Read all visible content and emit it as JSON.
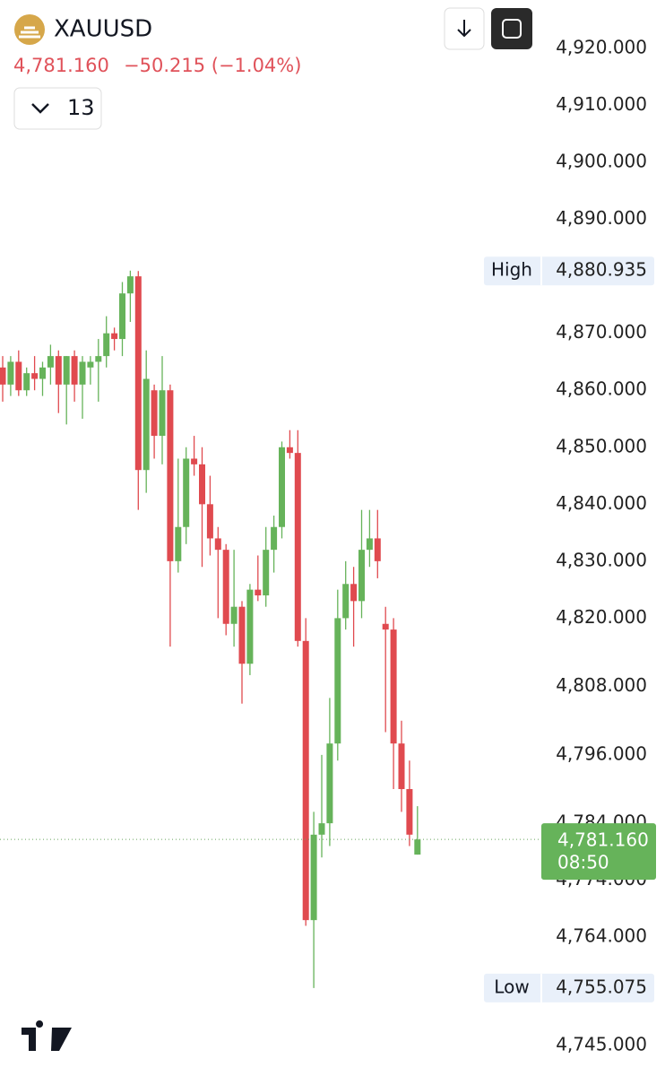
{
  "header": {
    "symbol": "XAUUSD",
    "change": "−50.215 (−1.04%)",
    "interval": "13"
  },
  "chart_data": {
    "type": "candlestick",
    "up_color": "#66b35a",
    "down_color": "#e04a4f",
    "ylim": [
      4739.64,
      4928.5
    ],
    "yticks": [
      {
        "value": 4920,
        "label": "4,920.000"
      },
      {
        "value": 4910,
        "label": "4,910.000"
      },
      {
        "value": 4900,
        "label": "4,900.000"
      },
      {
        "value": 4890,
        "label": "4,890.000"
      },
      {
        "value": 4870,
        "label": "4,870.000"
      },
      {
        "value": 4860,
        "label": "4,860.000"
      },
      {
        "value": 4850,
        "label": "4,850.000"
      },
      {
        "value": 4840,
        "label": "4,840.000"
      },
      {
        "value": 4830,
        "label": "4,830.000"
      },
      {
        "value": 4820,
        "label": "4,820.000"
      },
      {
        "value": 4808,
        "label": "4,808.000"
      },
      {
        "value": 4796,
        "label": "4,796.000"
      },
      {
        "value": 4784,
        "label": "4,784.000"
      },
      {
        "value": 4774,
        "label": "4,774.000"
      },
      {
        "value": 4764,
        "label": "4,764.000"
      },
      {
        "value": 4745,
        "label": "4,745.000"
      }
    ],
    "high": {
      "name": "High",
      "value": 4880.935,
      "label": "4,880.935"
    },
    "low": {
      "name": "Low",
      "value": 4755.075,
      "label": "4,755.075"
    },
    "last_price": {
      "value": 4781.16,
      "label": "4,781.160",
      "countdown": "08:50"
    },
    "open": [
      4864,
      4861,
      4865,
      4860,
      4863,
      4862,
      4864,
      4866,
      4861,
      4866,
      4861,
      4864,
      4865,
      4866,
      4870,
      4869,
      4877,
      4880,
      4846,
      4860,
      4852,
      4860,
      4830,
      4836,
      4848,
      4847,
      4840,
      4834,
      4832,
      4819,
      4822,
      4812,
      4825,
      4824,
      4832,
      4836,
      4850,
      4849,
      4816,
      4767,
      4782,
      4784,
      4798,
      4820,
      4826,
      4823,
      4832,
      4834,
      4819,
      4818,
      4798,
      4790,
      4778.5
    ],
    "high_values": [
      4866,
      4866,
      4867,
      4864,
      4866,
      4865,
      4868,
      4867,
      4866,
      4867,
      4866,
      4866,
      4869,
      4873,
      4871,
      4879,
      4881,
      4880.935,
      4867,
      4861,
      4866,
      4861,
      4848,
      4850,
      4852,
      4850,
      4845,
      4836,
      4833,
      4832,
      4823,
      4826,
      4831,
      4836,
      4838,
      4851,
      4853,
      4853,
      4820,
      4786,
      4796,
      4806,
      4825,
      4830,
      4829,
      4839,
      4839,
      4839,
      4822,
      4820,
      4802,
      4795,
      4787
    ],
    "low_values": [
      4858,
      4859,
      4859,
      4859,
      4860,
      4859,
      4861,
      4856,
      4854,
      4858,
      4855,
      4861,
      4858,
      4864,
      4867,
      4866,
      4872,
      4839,
      4842,
      4848,
      4847,
      4815,
      4828,
      4833,
      4845,
      4829,
      4831,
      4820,
      4817,
      4815,
      4805,
      4810,
      4823,
      4822,
      4828,
      4834,
      4848,
      4815,
      4766,
      4755.075,
      4778,
      4780,
      4795,
      4818,
      4815,
      4820,
      4829,
      4827,
      4800,
      4790,
      4786,
      4780,
      4778.5
    ],
    "close": [
      4861,
      4865,
      4860,
      4863,
      4862,
      4864,
      4866,
      4861,
      4866,
      4861,
      4865,
      4865,
      4866,
      4870,
      4869,
      4877,
      4880,
      4846,
      4862,
      4852,
      4860,
      4830,
      4836,
      4848,
      4847,
      4840,
      4834,
      4832,
      4819,
      4822,
      4812,
      4825,
      4824,
      4832,
      4836,
      4850,
      4849,
      4816,
      4767,
      4782,
      4784,
      4798,
      4820,
      4826,
      4823,
      4832,
      4834,
      4830,
      4818,
      4798,
      4790,
      4782,
      4781.16
    ]
  }
}
